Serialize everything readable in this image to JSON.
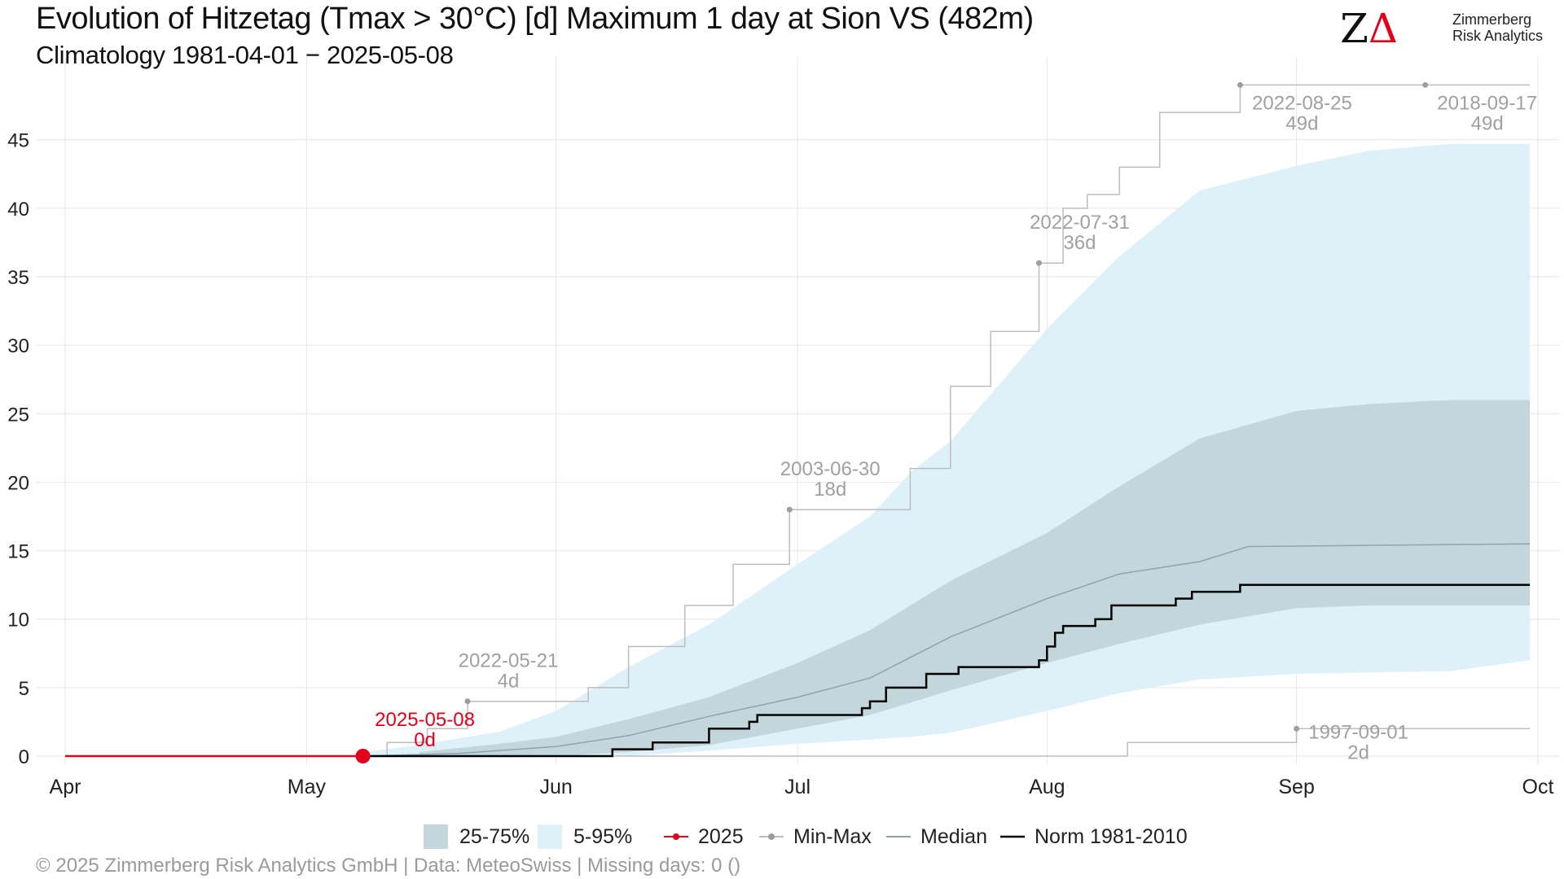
{
  "title": "Evolution of Hitzetag (Tmax > 30°C) [d] Maximum 1 day at Sion  VS (482m)",
  "subtitle": "Climatology 1981-04-01 − 2025-05-08",
  "logo": {
    "line1": "Zimmerberg",
    "line2": "Risk Analytics"
  },
  "footer": "©  2025 Zimmerberg Risk Analytics GmbH | Data: MeteoSwiss | Missing days: 0 ()",
  "legend": {
    "iqr": "25-75%",
    "p5_95": "5-95%",
    "current": "2025",
    "minmax": "Min-Max",
    "median": "Median",
    "norm": "Norm 1981-2010"
  },
  "colors": {
    "band_outer": "#dff1f8",
    "band_inner": "#c3d6dc",
    "current": "#e3001b",
    "minmax": "#bdbdbd",
    "minmax_point": "#9e9e9e",
    "median": "#8fa3a9",
    "norm": "#000000",
    "annotation": "#a0a0a0",
    "grid": "#e6e6e6"
  },
  "chart_data": {
    "type": "line",
    "title": "Evolution of Hitzetag (Tmax > 30°C) [d] Maximum 1 day at Sion  VS (482m)",
    "subtitle": "Climatology 1981-04-01 − 2025-05-08",
    "x_axis": {
      "type": "date",
      "range": [
        "2025-04-01",
        "2025-10-01"
      ],
      "tick_labels": [
        "Apr",
        "May",
        "Jun",
        "Jul",
        "Aug",
        "Sep",
        "Oct"
      ],
      "tick_dates": [
        "2025-04-01",
        "2025-05-01",
        "2025-06-01",
        "2025-07-01",
        "2025-08-01",
        "2025-09-01",
        "2025-10-01"
      ]
    },
    "y_axis": {
      "range": [
        0,
        49.5
      ],
      "ticks": [
        0,
        5,
        10,
        15,
        20,
        25,
        30,
        35,
        40,
        45
      ]
    },
    "grid": true,
    "legend_position": "bottom",
    "band_5_95": {
      "x": [
        "2025-05-08",
        "2025-05-15",
        "2025-05-25",
        "2025-06-01",
        "2025-06-10",
        "2025-06-20",
        "2025-07-01",
        "2025-07-10",
        "2025-07-15",
        "2025-07-20",
        "2025-08-01",
        "2025-08-10",
        "2025-08-20",
        "2025-09-01",
        "2025-09-10",
        "2025-09-20",
        "2025-09-30"
      ],
      "low": [
        0,
        0,
        0,
        0,
        0,
        0.4,
        0.9,
        1.2,
        1.4,
        1.7,
        3.3,
        4.6,
        5.6,
        6.0,
        6.1,
        6.2,
        7.0
      ],
      "high": [
        0.3,
        0.8,
        1.8,
        3.3,
        6.5,
        9.6,
        14.0,
        17.5,
        20.7,
        23.0,
        31.2,
        36.5,
        41.3,
        43.1,
        44.2,
        44.7,
        44.7
      ]
    },
    "band_25_75": {
      "x": [
        "2025-05-15",
        "2025-05-25",
        "2025-06-01",
        "2025-06-10",
        "2025-06-20",
        "2025-07-01",
        "2025-07-10",
        "2025-07-20",
        "2025-08-01",
        "2025-08-10",
        "2025-08-20",
        "2025-09-01",
        "2025-09-10",
        "2025-09-20",
        "2025-09-30"
      ],
      "low": [
        0,
        0,
        0,
        0.3,
        0.8,
        2.0,
        3.0,
        4.8,
        6.8,
        8.2,
        9.6,
        10.8,
        11.0,
        11.0,
        11.0
      ],
      "high": [
        0.3,
        0.9,
        1.4,
        2.7,
        4.3,
        6.8,
        9.2,
        12.8,
        16.3,
        19.7,
        23.2,
        25.2,
        25.7,
        26.0,
        26.0
      ]
    },
    "median": {
      "x": [
        "2025-05-08",
        "2025-05-20",
        "2025-06-01",
        "2025-06-10",
        "2025-06-20",
        "2025-07-01",
        "2025-07-10",
        "2025-07-20",
        "2025-08-01",
        "2025-08-10",
        "2025-08-20",
        "2025-08-26",
        "2025-09-30"
      ],
      "y": [
        0,
        0.2,
        0.7,
        1.5,
        2.9,
        4.3,
        5.7,
        8.7,
        11.5,
        13.3,
        14.2,
        15.3,
        15.5
      ]
    },
    "norm_1981_2010": {
      "x": [
        "2025-05-08",
        "2025-06-08",
        "2025-06-13",
        "2025-06-20",
        "2025-06-25",
        "2025-06-26",
        "2025-07-09",
        "2025-07-10",
        "2025-07-12",
        "2025-07-17",
        "2025-07-21",
        "2025-07-23",
        "2025-07-31",
        "2025-08-01",
        "2025-08-02",
        "2025-08-03",
        "2025-08-04",
        "2025-08-07",
        "2025-08-09",
        "2025-08-17",
        "2025-08-19",
        "2025-08-25",
        "2025-09-30"
      ],
      "y": [
        0,
        0.5,
        1,
        2,
        2.5,
        3,
        3.5,
        4,
        5,
        6,
        6.5,
        6.5,
        7,
        8,
        9,
        9.5,
        9.5,
        10,
        11,
        11.5,
        12,
        12.5,
        12.5
      ]
    },
    "max_record": {
      "x": [
        "2025-05-08",
        "2025-05-11",
        "2025-05-16",
        "2025-05-21",
        "2025-06-05",
        "2025-06-10",
        "2025-06-17",
        "2025-06-23",
        "2025-06-30",
        "2025-07-08",
        "2025-07-15",
        "2025-07-20",
        "2025-07-25",
        "2025-07-31",
        "2025-08-03",
        "2025-08-06",
        "2025-08-10",
        "2025-08-15",
        "2025-08-25",
        "2025-09-17",
        "2025-09-30"
      ],
      "y": [
        0,
        1,
        2,
        4,
        5,
        8,
        11,
        14,
        18,
        18,
        21,
        27,
        31,
        36,
        40,
        41,
        43,
        47,
        49,
        49,
        49
      ]
    },
    "min_record": {
      "x": [
        "2025-05-08",
        "2025-08-05",
        "2025-08-11",
        "2025-09-01",
        "2025-09-30"
      ],
      "y": [
        0,
        0,
        1,
        2,
        2
      ]
    },
    "current_2025": {
      "name": "2025",
      "x": [
        "2025-04-01",
        "2025-05-08"
      ],
      "y": [
        0,
        0
      ]
    },
    "annotations": [
      {
        "date_label": "2022-05-21",
        "value_label": "4d",
        "x": "2025-05-21",
        "y": 4,
        "series": "max"
      },
      {
        "date_label": "2003-06-30",
        "value_label": "18d",
        "x": "2025-06-30",
        "y": 18,
        "series": "max"
      },
      {
        "date_label": "2022-07-31",
        "value_label": "36d",
        "x": "2025-07-31",
        "y": 36,
        "series": "max"
      },
      {
        "date_label": "2022-08-25",
        "value_label": "49d",
        "x": "2025-08-25",
        "y": 49,
        "series": "max"
      },
      {
        "date_label": "2018-09-17",
        "value_label": "49d",
        "x": "2025-09-17",
        "y": 49,
        "series": "max"
      },
      {
        "date_label": "1997-09-01",
        "value_label": "2d",
        "x": "2025-09-01",
        "y": 2,
        "series": "min"
      },
      {
        "date_label": "2025-05-08",
        "value_label": "0d",
        "x": "2025-05-08",
        "y": 0,
        "series": "current"
      }
    ]
  }
}
